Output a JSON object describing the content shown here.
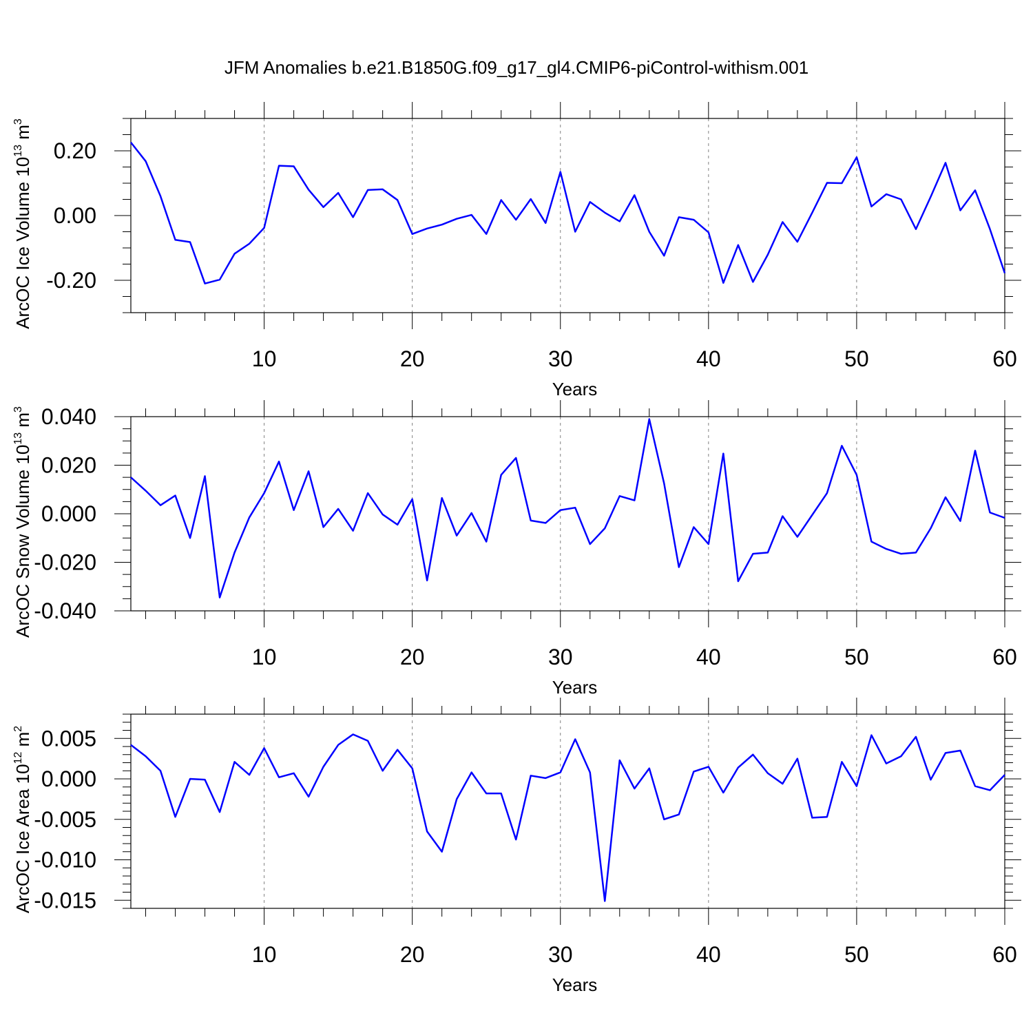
{
  "title": "JFM Anomalies b.e21.B1850G.f09_g17_gl4.CMIP6-piControl-withism.001",
  "colors": {
    "line": "#0000ff",
    "axis": "#000000",
    "grid": "#808080"
  },
  "chart_data": [
    {
      "type": "line",
      "ylabel": "ArcOC Ice Volume 10",
      "ylabel_exp": "13",
      "ylabel_unit": " m",
      "ylabel_unit_exp": "3",
      "xlabel": "Years",
      "xlim": [
        1,
        60
      ],
      "ylim": [
        -0.3,
        0.3
      ],
      "xticks": [
        10,
        20,
        30,
        40,
        50,
        60
      ],
      "yticks": [
        -0.2,
        0.0,
        0.2
      ],
      "ytick_labels": [
        "-0.20",
        "0.00",
        "0.20"
      ],
      "yminor_step": 0.05,
      "x": [
        1,
        2,
        3,
        4,
        5,
        6,
        7,
        8,
        9,
        10,
        11,
        12,
        13,
        14,
        15,
        16,
        17,
        18,
        19,
        20,
        21,
        22,
        23,
        24,
        25,
        26,
        27,
        28,
        29,
        30,
        31,
        32,
        33,
        34,
        35,
        36,
        37,
        38,
        39,
        40,
        41,
        42,
        43,
        44,
        45,
        46,
        47,
        48,
        49,
        50,
        51,
        52,
        53,
        54,
        55,
        56,
        57,
        58,
        59,
        60
      ],
      "series": [
        {
          "name": "ArcOC Ice Volume",
          "values": [
            0.226,
            0.168,
            0.06,
            -0.075,
            -0.082,
            -0.21,
            -0.198,
            -0.118,
            -0.087,
            -0.038,
            0.154,
            0.152,
            0.08,
            0.026,
            0.07,
            -0.005,
            0.079,
            0.081,
            0.048,
            -0.057,
            -0.04,
            -0.028,
            -0.01,
            0.002,
            -0.057,
            0.048,
            -0.013,
            0.051,
            -0.023,
            0.135,
            -0.05,
            0.042,
            0.009,
            -0.018,
            0.063,
            -0.05,
            -0.124,
            -0.005,
            -0.013,
            -0.052,
            -0.208,
            -0.091,
            -0.205,
            -0.121,
            -0.02,
            -0.081,
            0.009,
            0.101,
            0.1,
            0.18,
            0.028,
            0.066,
            0.05,
            -0.042,
            0.058,
            0.163,
            0.016,
            0.078,
            -0.042,
            -0.178
          ]
        }
      ]
    },
    {
      "type": "line",
      "ylabel": "ArcOC Snow Volume 10",
      "ylabel_exp": "13",
      "ylabel_unit": " m",
      "ylabel_unit_exp": "3",
      "xlabel": "Years",
      "xlim": [
        1,
        60
      ],
      "ylim": [
        -0.04,
        0.04
      ],
      "xticks": [
        10,
        20,
        30,
        40,
        50,
        60
      ],
      "yticks": [
        -0.04,
        -0.02,
        0.0,
        0.02,
        0.04
      ],
      "ytick_labels": [
        "-0.040",
        "-0.020",
        "0.000",
        "0.020",
        "0.040"
      ],
      "yminor_step": 0.005,
      "x": [
        1,
        2,
        3,
        4,
        5,
        6,
        7,
        8,
        9,
        10,
        11,
        12,
        13,
        14,
        15,
        16,
        17,
        18,
        19,
        20,
        21,
        22,
        23,
        24,
        25,
        26,
        27,
        28,
        29,
        30,
        31,
        32,
        33,
        34,
        35,
        36,
        37,
        38,
        39,
        40,
        41,
        42,
        43,
        44,
        45,
        46,
        47,
        48,
        49,
        50,
        51,
        52,
        53,
        54,
        55,
        56,
        57,
        58,
        59,
        60
      ],
      "series": [
        {
          "name": "ArcOC Snow Volume",
          "values": [
            0.015,
            0.0095,
            0.0035,
            0.0075,
            -0.01,
            0.0155,
            -0.0345,
            -0.016,
            -0.0015,
            0.0085,
            0.0215,
            0.0015,
            0.0175,
            -0.0055,
            0.002,
            -0.007,
            0.0085,
            -0.0003,
            -0.0045,
            0.006,
            -0.0275,
            0.0065,
            -0.009,
            0.0003,
            -0.0115,
            0.016,
            0.023,
            -0.0028,
            -0.0038,
            0.0015,
            0.0025,
            -0.0125,
            -0.006,
            0.0073,
            0.0055,
            0.039,
            0.0125,
            -0.022,
            -0.0055,
            -0.0125,
            0.0248,
            -0.0278,
            -0.0165,
            -0.016,
            -0.001,
            -0.0095,
            -0.0005,
            0.0085,
            0.028,
            0.016,
            -0.0115,
            -0.0145,
            -0.0165,
            -0.016,
            -0.006,
            0.0068,
            -0.003,
            0.026,
            0.0005,
            -0.0017
          ]
        }
      ]
    },
    {
      "type": "line",
      "ylabel": "ArcOC Ice Area 10",
      "ylabel_exp": "12",
      "ylabel_unit": " m",
      "ylabel_unit_exp": "2",
      "xlabel": "Years",
      "xlim": [
        1,
        60
      ],
      "ylim": [
        -0.016,
        0.008
      ],
      "xticks": [
        10,
        20,
        30,
        40,
        50,
        60
      ],
      "yticks": [
        -0.015,
        -0.01,
        -0.005,
        0.0,
        0.005
      ],
      "ytick_labels": [
        "-0.015",
        "-0.010",
        "-0.005",
        "0.000",
        "0.005"
      ],
      "yminor_step": 0.001,
      "x": [
        1,
        2,
        3,
        4,
        5,
        6,
        7,
        8,
        9,
        10,
        11,
        12,
        13,
        14,
        15,
        16,
        17,
        18,
        19,
        20,
        21,
        22,
        23,
        24,
        25,
        26,
        27,
        28,
        29,
        30,
        31,
        32,
        33,
        34,
        35,
        36,
        37,
        38,
        39,
        40,
        41,
        42,
        43,
        44,
        45,
        46,
        47,
        48,
        49,
        50,
        51,
        52,
        53,
        54,
        55,
        56,
        57,
        58,
        59,
        60
      ],
      "series": [
        {
          "name": "ArcOC Ice Area",
          "values": [
            0.0042,
            0.0028,
            0.001,
            -0.0047,
            0.0,
            -0.0001,
            -0.0041,
            0.0021,
            0.0005,
            0.0038,
            0.0002,
            0.0007,
            -0.0022,
            0.0015,
            0.0042,
            0.0055,
            0.0047,
            0.001,
            0.0036,
            0.0013,
            -0.0065,
            -0.009,
            -0.0025,
            0.0008,
            -0.0018,
            -0.0018,
            -0.0075,
            0.0004,
            0.0001,
            0.0008,
            0.0049,
            0.0008,
            -0.0151,
            0.0023,
            -0.0012,
            0.0013,
            -0.005,
            -0.0044,
            0.0009,
            0.0015,
            -0.0017,
            0.0014,
            0.003,
            0.0007,
            -0.0006,
            0.0025,
            -0.0048,
            -0.0047,
            0.0021,
            -0.0009,
            0.0054,
            0.0019,
            0.0028,
            0.0052,
            -0.0001,
            0.0032,
            0.0035,
            -0.0009,
            -0.0014,
            0.0005
          ]
        }
      ]
    }
  ]
}
